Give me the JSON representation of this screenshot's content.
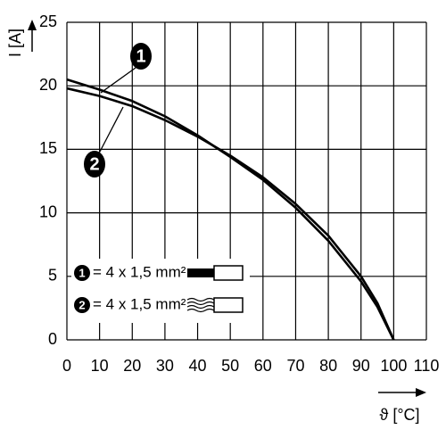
{
  "chart_data": {
    "type": "line",
    "y_label": "I [A]",
    "x_label": "ϑ [°C]",
    "x": [
      0,
      10,
      20,
      30,
      40,
      50,
      60,
      70,
      80,
      90,
      95,
      100
    ],
    "series": [
      {
        "name": "= 4 x 1,5 mm²",
        "label": "1",
        "color": "#000000",
        "values": [
          20.5,
          19.7,
          18.8,
          17.6,
          16.1,
          14.4,
          12.6,
          10.4,
          7.8,
          4.6,
          2.6,
          0
        ]
      },
      {
        "name": "= 4 x 1,5 mm²",
        "label": "2",
        "color": "#000000",
        "values": [
          19.8,
          19.2,
          18.4,
          17.3,
          16.0,
          14.5,
          12.8,
          10.7,
          8.2,
          5.0,
          2.9,
          0
        ]
      }
    ],
    "xlim": [
      0,
      110
    ],
    "xticks": [
      0,
      10,
      20,
      30,
      40,
      50,
      60,
      70,
      80,
      90,
      100,
      110
    ],
    "ylim": [
      0,
      25
    ],
    "yticks": [
      0,
      5,
      10,
      15,
      20,
      25
    ],
    "grid": true
  }
}
